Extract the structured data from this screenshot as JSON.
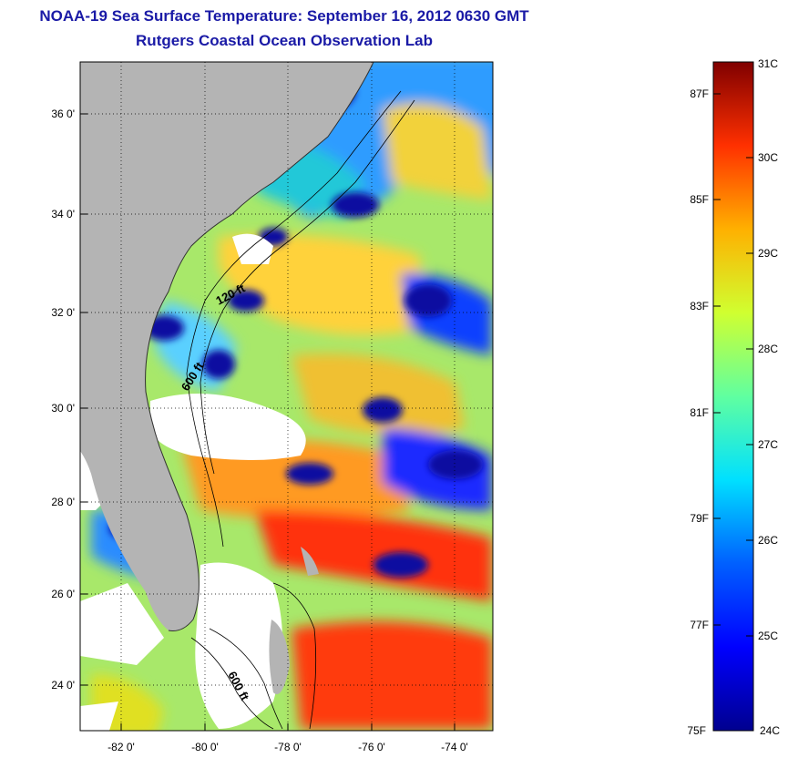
{
  "title": {
    "line1": "NOAA-19 Sea Surface Temperature:  September 16, 2012 0630 GMT",
    "line2": "Rutgers Coastal Ocean Observation Lab"
  },
  "map": {
    "longitude_ticks": [
      "-82 0'",
      "-80 0'",
      "-78 0'",
      "-76 0'",
      "-74 0'"
    ],
    "latitude_ticks": [
      "36 0'",
      "34 0'",
      "32 0'",
      "30 0'",
      "28 0'",
      "26 0'",
      "24 0'"
    ],
    "contour_labels": [
      "120 ft",
      "600 ft",
      "600 ft"
    ],
    "colors": {
      "land": "#b4b4b4",
      "cloud": "#ffffff",
      "frame": "#000000"
    }
  },
  "colorbar": {
    "celsius_labels": [
      "31C",
      "30C",
      "29C",
      "28C",
      "27C",
      "26C",
      "25C",
      "24C"
    ],
    "fahrenheit_labels": [
      "87F",
      "85F",
      "83F",
      "81F",
      "79F",
      "77F",
      "75F"
    ],
    "min_c": 24,
    "max_c": 31,
    "colormap": "jet",
    "colors": [
      "#00008f",
      "#0000ff",
      "#0080ff",
      "#00ffff",
      "#80ff80",
      "#ffff00",
      "#ff8000",
      "#ff0000",
      "#800000"
    ]
  }
}
